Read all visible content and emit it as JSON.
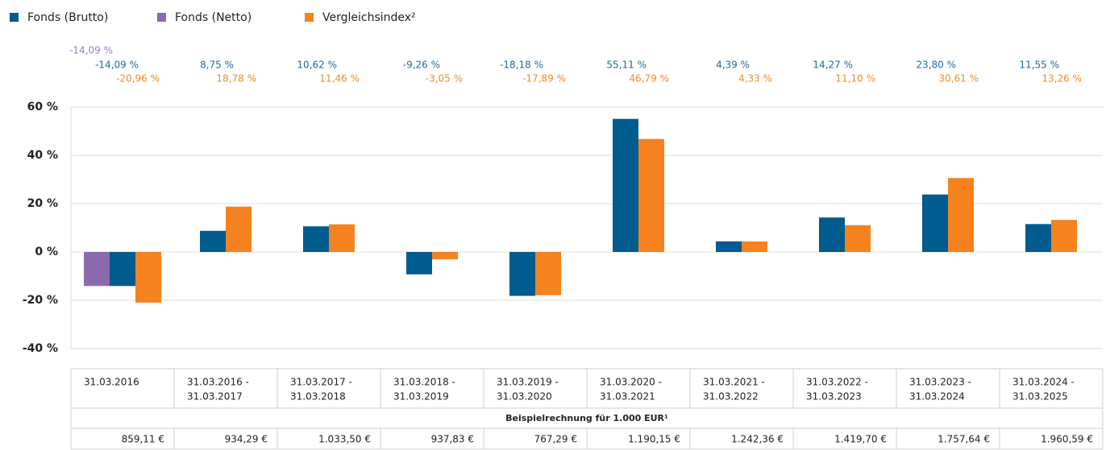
{
  "chart_data": {
    "type": "bar",
    "categories": [
      [
        "31.03.2016"
      ],
      [
        "31.03.2016 -",
        "31.03.2017"
      ],
      [
        "31.03.2017 -",
        "31.03.2018"
      ],
      [
        "31.03.2018 -",
        "31.03.2019"
      ],
      [
        "31.03.2019 -",
        "31.03.2020"
      ],
      [
        "31.03.2020 -",
        "31.03.2021"
      ],
      [
        "31.03.2021 -",
        "31.03.2022"
      ],
      [
        "31.03.2022 -",
        "31.03.2023"
      ],
      [
        "31.03.2023 -",
        "31.03.2024"
      ],
      [
        "31.03.2024 -",
        "31.03.2025"
      ]
    ],
    "series": [
      {
        "name": "Fonds (Brutto)",
        "color": "#005b8e",
        "label_color": "#1f6d99",
        "values": [
          -14.09,
          8.75,
          10.62,
          -9.26,
          -18.18,
          55.11,
          4.39,
          14.27,
          23.8,
          11.55
        ],
        "value_labels": [
          "-14,09 %",
          "8,75 %",
          "10,62 %",
          "-9,26 %",
          "-18,18 %",
          "55,11 %",
          "4,39 %",
          "14,27 %",
          "23,80 %",
          "11,55 %"
        ]
      },
      {
        "name": "Fonds (Netto)",
        "color": "#8a6aad",
        "label_color": "#9b7cc0",
        "values": [
          -14.09,
          null,
          null,
          null,
          null,
          null,
          null,
          null,
          null,
          null
        ],
        "value_labels": [
          "-14,09 %",
          null,
          null,
          null,
          null,
          null,
          null,
          null,
          null,
          null
        ]
      },
      {
        "name": "Vergleichsindex²",
        "color": "#f5821f",
        "label_color": "#f08a24",
        "values": [
          -20.96,
          18.78,
          11.46,
          -3.05,
          -17.89,
          46.79,
          4.33,
          11.1,
          30.61,
          13.26
        ],
        "value_labels": [
          "-20,96 %",
          "18,78 %",
          "11,46 %",
          "-3,05 %",
          "-17,89 %",
          "46,79 %",
          "4,33 %",
          "11,10 %",
          "30,61 %",
          "13,26 %"
        ]
      }
    ],
    "ylim": [
      -40,
      60
    ],
    "yticks": [
      {
        "value": 60,
        "label": "60 %"
      },
      {
        "value": 40,
        "label": "40 %"
      },
      {
        "value": 20,
        "label": "20 %"
      },
      {
        "value": 0,
        "label": "0 %"
      },
      {
        "value": -20,
        "label": "-20 %"
      },
      {
        "value": -40,
        "label": "-40 %"
      }
    ],
    "grid": true
  },
  "table": {
    "caption": "Beispielrechnung für 1.000 EUR¹",
    "values": [
      "859,11 €",
      "934,29 €",
      "1.033,50 €",
      "937,83 €",
      "767,29 €",
      "1.190,15 €",
      "1.242,36 €",
      "1.419,70 €",
      "1.757,64 €",
      "1.960,59 €"
    ]
  }
}
